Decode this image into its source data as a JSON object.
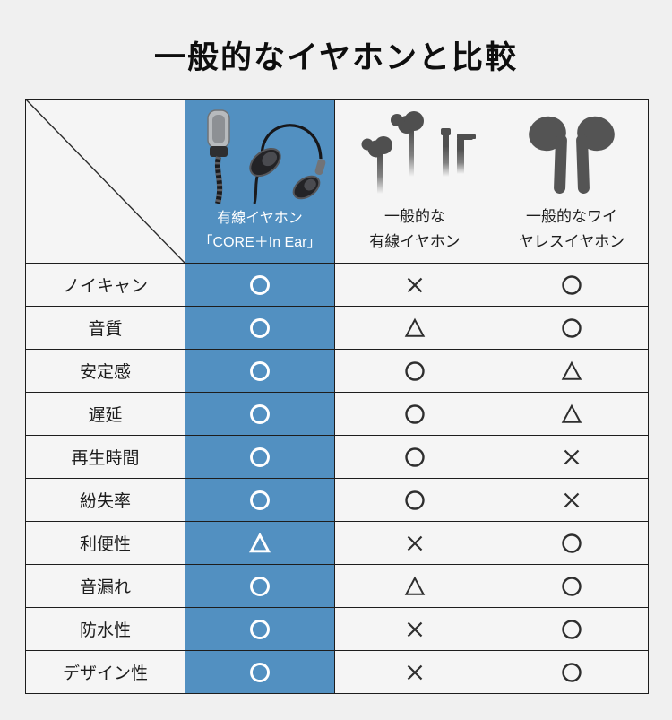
{
  "page": {
    "title": "一般的なイヤホンと比較"
  },
  "colors": {
    "background": "#f0f0f0",
    "cell_background": "#f5f5f5",
    "accent_blue": "#5290c1",
    "border": "#1d1d1d",
    "symbol_dark": "#2e2e2e",
    "symbol_light": "#ffffff",
    "silhouette_gray": "#4f4f4f"
  },
  "table": {
    "columns": [
      {
        "id": "coreplus",
        "label_lines": [
          "有線イヤホン",
          "「CORE＋In Ear」"
        ],
        "highlight": true,
        "icon": "coreplus-product-image"
      },
      {
        "id": "wired",
        "label_lines": [
          "一般的な",
          "有線イヤホン"
        ],
        "highlight": false,
        "icon": "wired-earphone-silhouette"
      },
      {
        "id": "wireless",
        "label_lines": [
          "一般的なワイ",
          "ヤレスイヤホン"
        ],
        "highlight": false,
        "icon": "wireless-earbuds-silhouette"
      }
    ],
    "symbols": {
      "circle": "○",
      "triangle": "△",
      "cross": "×"
    },
    "rows": [
      {
        "label": "ノイキャン",
        "values": [
          "circle",
          "cross",
          "circle"
        ]
      },
      {
        "label": "音質",
        "values": [
          "circle",
          "triangle",
          "circle"
        ]
      },
      {
        "label": "安定感",
        "values": [
          "circle",
          "circle",
          "triangle"
        ]
      },
      {
        "label": "遅延",
        "values": [
          "circle",
          "circle",
          "triangle"
        ]
      },
      {
        "label": "再生時間",
        "values": [
          "circle",
          "circle",
          "cross"
        ]
      },
      {
        "label": "紛失率",
        "values": [
          "circle",
          "circle",
          "cross"
        ]
      },
      {
        "label": "利便性",
        "values": [
          "triangle",
          "cross",
          "circle"
        ]
      },
      {
        "label": "音漏れ",
        "values": [
          "circle",
          "triangle",
          "circle"
        ]
      },
      {
        "label": "防水性",
        "values": [
          "circle",
          "cross",
          "circle"
        ]
      },
      {
        "label": "デザイン性",
        "values": [
          "circle",
          "cross",
          "circle"
        ]
      }
    ]
  },
  "chart_data": {
    "type": "table",
    "title": "一般的なイヤホンと比較",
    "columns": [
      "有線イヤホン「CORE＋In Ear」",
      "一般的な有線イヤホン",
      "一般的なワイヤレスイヤホン"
    ],
    "row_labels": [
      "ノイキャン",
      "音質",
      "安定感",
      "遅延",
      "再生時間",
      "紛失率",
      "利便性",
      "音漏れ",
      "防水性",
      "デザイン性"
    ],
    "values": [
      [
        "○",
        "×",
        "○"
      ],
      [
        "○",
        "△",
        "○"
      ],
      [
        "○",
        "○",
        "△"
      ],
      [
        "○",
        "○",
        "△"
      ],
      [
        "○",
        "○",
        "×"
      ],
      [
        "○",
        "○",
        "×"
      ],
      [
        "△",
        "×",
        "○"
      ],
      [
        "○",
        "△",
        "○"
      ],
      [
        "○",
        "×",
        "○"
      ],
      [
        "○",
        "×",
        "○"
      ]
    ],
    "highlight_column": 0,
    "layout": {
      "legend": "none",
      "header_icons": true
    }
  }
}
